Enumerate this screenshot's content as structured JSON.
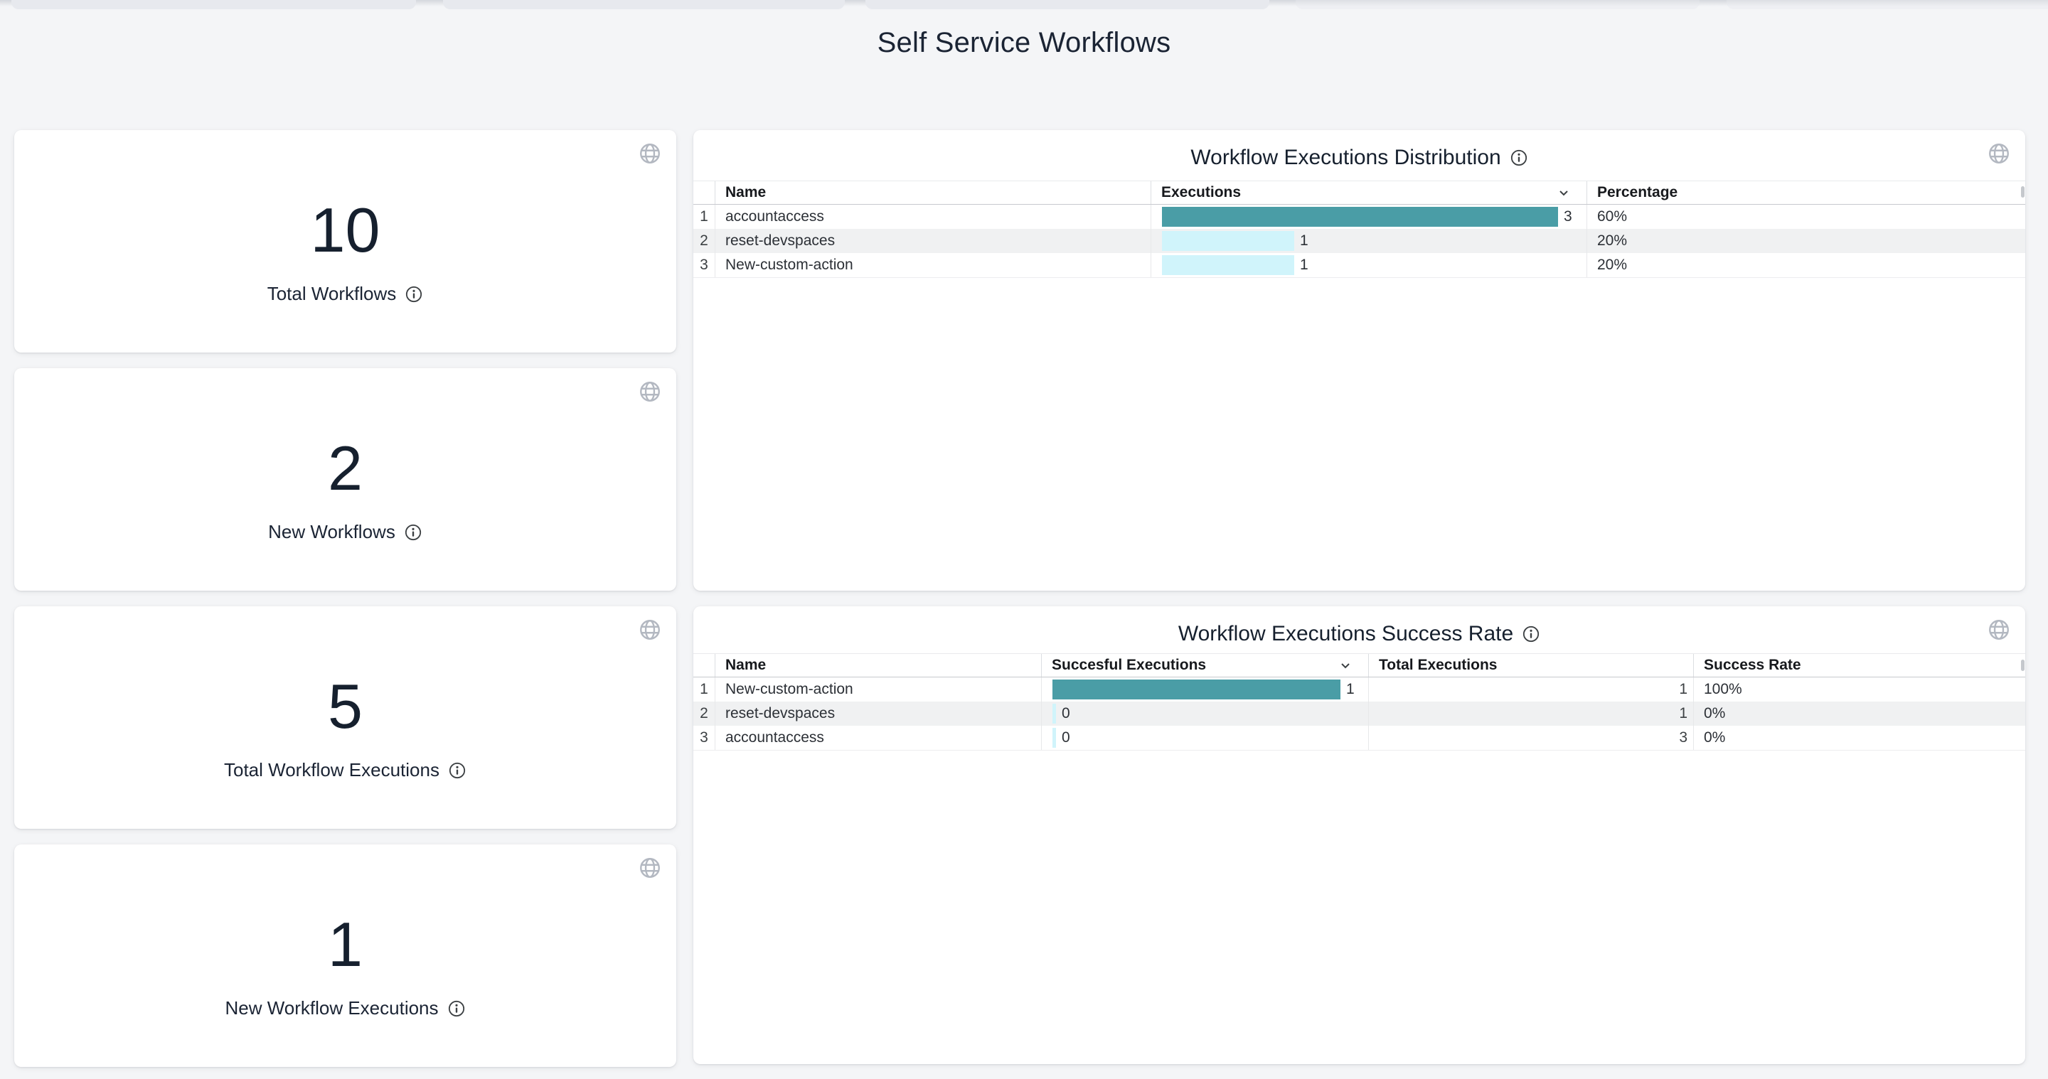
{
  "page": {
    "title": "Self Service Workflows"
  },
  "colors": {
    "bar_primary": "#4a9da6",
    "bar_secondary": "#d0f4fb"
  },
  "stat_cards": [
    {
      "value": "10",
      "label": "Total Workflows"
    },
    {
      "value": "2",
      "label": "New Workflows"
    },
    {
      "value": "5",
      "label": "Total Workflow Executions"
    },
    {
      "value": "1",
      "label": "New Workflow Executions"
    }
  ],
  "distribution_table": {
    "title": "Workflow Executions Distribution",
    "headers": {
      "name": "Name",
      "executions": "Executions",
      "percentage": "Percentage"
    },
    "max_executions": 3,
    "rows": [
      {
        "index": "1",
        "name": "accountaccess",
        "executions": 3,
        "percentage": "60%"
      },
      {
        "index": "2",
        "name": "reset-devspaces",
        "executions": 1,
        "percentage": "20%"
      },
      {
        "index": "3",
        "name": "New-custom-action",
        "executions": 1,
        "percentage": "20%"
      }
    ]
  },
  "success_table": {
    "title": "Workflow Executions Success Rate",
    "headers": {
      "name": "Name",
      "successful": "Succesful Executions",
      "total": "Total Executions",
      "rate": "Success Rate"
    },
    "max_successful": 1,
    "rows": [
      {
        "index": "1",
        "name": "New-custom-action",
        "successful": 1,
        "total": "1",
        "rate": "100%"
      },
      {
        "index": "2",
        "name": "reset-devspaces",
        "successful": 0,
        "total": "1",
        "rate": "0%"
      },
      {
        "index": "3",
        "name": "accountaccess",
        "successful": 0,
        "total": "3",
        "rate": "0%"
      }
    ]
  },
  "chart_data": [
    {
      "type": "table",
      "title": "Workflow Executions Distribution",
      "columns": [
        "Name",
        "Executions",
        "Percentage"
      ],
      "categories": [
        "accountaccess",
        "reset-devspaces",
        "New-custom-action"
      ],
      "values": [
        3,
        1,
        1
      ],
      "percentages": [
        "60%",
        "20%",
        "20%"
      ],
      "bar_max": 3
    },
    {
      "type": "table",
      "title": "Workflow Executions Success Rate",
      "columns": [
        "Name",
        "Succesful Executions",
        "Total Executions",
        "Success Rate"
      ],
      "categories": [
        "New-custom-action",
        "reset-devspaces",
        "accountaccess"
      ],
      "series": [
        {
          "name": "Succesful Executions",
          "values": [
            1,
            0,
            0
          ]
        },
        {
          "name": "Total Executions",
          "values": [
            1,
            1,
            3
          ]
        }
      ],
      "rates": [
        "100%",
        "0%",
        "0%"
      ],
      "bar_max": 1
    }
  ]
}
